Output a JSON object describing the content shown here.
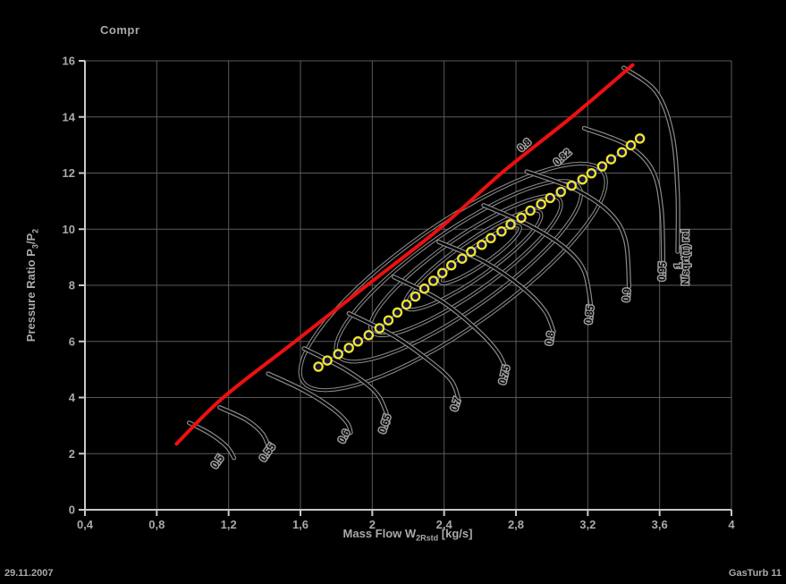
{
  "footer": {
    "date": "29.11.2007",
    "app": "GasTurb 11"
  },
  "chart_data": {
    "type": "line",
    "title": "Compr",
    "xlabel_parts": {
      "a": "Mass Flow W",
      "sub": "2Rstd",
      "b": " [kg/s]"
    },
    "ylabel_parts": {
      "a": "Pressure Ratio P",
      "sub_a": "3",
      "b": "/P",
      "sub_b": "2"
    },
    "xlim": [
      0.4,
      4
    ],
    "ylim": [
      0,
      16
    ],
    "xticks": [
      0.4,
      0.8,
      1.2,
      1.6,
      2.0,
      2.4,
      2.8,
      3.2,
      3.6,
      4.0
    ],
    "xtick_labels": [
      "0,4",
      "0,8",
      "1,2",
      "1,6",
      "2",
      "2,4",
      "2,8",
      "3,2",
      "3,6",
      "4"
    ],
    "yticks": [
      0,
      2,
      4,
      6,
      8,
      10,
      12,
      14,
      16
    ],
    "ytick_labels": [
      "0",
      "2",
      "4",
      "6",
      "8",
      "10",
      "12",
      "14",
      "16"
    ],
    "grid": true,
    "colors": {
      "background": "#000000",
      "grid": "#5a5a5a",
      "axis": "#c8c8c8",
      "text": "#a9a9a9",
      "speed_line": "#000000",
      "halo": "#8a8a8a",
      "surge": "#ee1010",
      "operating_line": "#2b35d8",
      "marker_stroke": "#f2e42a",
      "marker_fill": "#141640"
    },
    "surge_line": [
      [
        0.91,
        2.35
      ],
      [
        1.17,
        4.0
      ],
      [
        1.57,
        6.0
      ],
      [
        1.97,
        8.0
      ],
      [
        2.37,
        10.0
      ],
      [
        2.72,
        12.0
      ],
      [
        3.11,
        14.0
      ],
      [
        3.45,
        15.85
      ]
    ],
    "speed_lines": [
      {
        "label": "0.5",
        "points": [
          [
            0.98,
            3.1
          ],
          [
            1.1,
            2.7
          ],
          [
            1.19,
            2.25
          ],
          [
            1.23,
            1.85
          ]
        ],
        "label_pos": [
          1.13,
          1.45
        ],
        "label_angle": -55
      },
      {
        "label": "0.55",
        "points": [
          [
            1.15,
            3.65
          ],
          [
            1.3,
            3.2
          ],
          [
            1.39,
            2.7
          ],
          [
            1.43,
            2.1
          ]
        ],
        "label_pos": [
          1.4,
          1.7
        ],
        "label_angle": -55
      },
      {
        "label": "0.6",
        "points": [
          [
            1.42,
            4.85
          ],
          [
            1.62,
            4.25
          ],
          [
            1.78,
            3.6
          ],
          [
            1.86,
            3.1
          ],
          [
            1.88,
            2.75
          ]
        ],
        "label_pos": [
          1.84,
          2.35
        ],
        "label_angle": -62
      },
      {
        "label": "0.65",
        "points": [
          [
            1.62,
            5.75
          ],
          [
            1.85,
            5.0
          ],
          [
            2.01,
            4.25
          ],
          [
            2.07,
            3.6
          ],
          [
            2.09,
            3.1
          ]
        ],
        "label_pos": [
          2.07,
          2.7
        ],
        "label_angle": -72
      },
      {
        "label": "0.7",
        "points": [
          [
            1.87,
            7.0
          ],
          [
            2.12,
            6.2
          ],
          [
            2.32,
            5.3
          ],
          [
            2.44,
            4.6
          ],
          [
            2.48,
            3.95
          ]
        ],
        "label_pos": [
          2.47,
          3.5
        ],
        "label_angle": -72
      },
      {
        "label": "0.75",
        "points": [
          [
            2.12,
            8.3
          ],
          [
            2.37,
            7.5
          ],
          [
            2.57,
            6.5
          ],
          [
            2.7,
            5.6
          ],
          [
            2.75,
            4.9
          ]
        ],
        "label_pos": [
          2.74,
          4.45
        ],
        "label_angle": -77
      },
      {
        "label": "0.8",
        "points": [
          [
            2.37,
            9.55
          ],
          [
            2.62,
            8.85
          ],
          [
            2.83,
            7.95
          ],
          [
            2.96,
            7.1
          ],
          [
            3.01,
            6.35
          ]
        ],
        "label_pos": [
          3.0,
          5.85
        ],
        "label_angle": -80
      },
      {
        "label": "0.85",
        "points": [
          [
            2.62,
            10.85
          ],
          [
            2.87,
            10.15
          ],
          [
            3.07,
            9.35
          ],
          [
            3.18,
            8.5
          ],
          [
            3.22,
            7.15
          ]
        ],
        "label_pos": [
          3.22,
          6.6
        ],
        "label_angle": -83
      },
      {
        "label": "0.9",
        "points": [
          [
            2.86,
            12.05
          ],
          [
            3.12,
            11.45
          ],
          [
            3.32,
            10.6
          ],
          [
            3.41,
            9.6
          ],
          [
            3.43,
            7.95
          ]
        ],
        "label_pos": [
          3.43,
          7.4
        ],
        "label_angle": -85
      },
      {
        "label": "0.95",
        "points": [
          [
            3.18,
            13.6
          ],
          [
            3.42,
            13.0
          ],
          [
            3.56,
            12.1
          ],
          [
            3.61,
            10.7
          ],
          [
            3.62,
            8.7
          ]
        ],
        "label_pos": [
          3.63,
          8.15
        ],
        "label_angle": -88
      },
      {
        "label": "1",
        "points": [
          [
            3.4,
            15.75
          ],
          [
            3.58,
            14.9
          ],
          [
            3.67,
            13.4
          ],
          [
            3.7,
            11.3
          ],
          [
            3.7,
            9.2
          ]
        ],
        "label_pos": [
          3.72,
          8.6
        ],
        "label_angle": -89
      }
    ],
    "efficiency_contours": [
      {
        "center": [
          2.45,
          8.3
        ],
        "rx": 1.02,
        "ry": 1.85,
        "rot": -35
      },
      {
        "center": [
          2.48,
          8.5
        ],
        "rx": 0.82,
        "ry": 1.4,
        "rot": -35
      },
      {
        "center": [
          2.52,
          8.7
        ],
        "rx": 0.64,
        "ry": 0.99,
        "rot": -35
      },
      {
        "center": [
          2.56,
          8.9
        ],
        "rx": 0.46,
        "ry": 0.64,
        "rot": -35
      },
      {
        "center": [
          2.6,
          9.1
        ],
        "rx": 0.27,
        "ry": 0.35,
        "rot": -35
      }
    ],
    "annotations": [
      {
        "text": "0.8",
        "pos": [
          2.83,
          12.75
        ],
        "angle": -42
      },
      {
        "text": "0.82",
        "pos": [
          3.03,
          12.25
        ],
        "angle": -42
      },
      {
        "text": "N/sqrt(T) rel",
        "pos": [
          3.76,
          8.0
        ],
        "angle": -90
      }
    ],
    "operating_points": [
      [
        1.7,
        5.1
      ],
      [
        1.75,
        5.32
      ],
      [
        1.81,
        5.55
      ],
      [
        1.87,
        5.77
      ],
      [
        1.92,
        6.0
      ],
      [
        1.98,
        6.22
      ],
      [
        2.04,
        6.47
      ],
      [
        2.09,
        6.75
      ],
      [
        2.14,
        7.03
      ],
      [
        2.19,
        7.31
      ],
      [
        2.24,
        7.6
      ],
      [
        2.29,
        7.88
      ],
      [
        2.34,
        8.16
      ],
      [
        2.39,
        8.44
      ],
      [
        2.44,
        8.71
      ],
      [
        2.5,
        8.95
      ],
      [
        2.55,
        9.2
      ],
      [
        2.61,
        9.44
      ],
      [
        2.66,
        9.68
      ],
      [
        2.72,
        9.92
      ],
      [
        2.77,
        10.17
      ],
      [
        2.83,
        10.41
      ],
      [
        2.88,
        10.66
      ],
      [
        2.94,
        10.89
      ],
      [
        2.99,
        11.11
      ],
      [
        3.05,
        11.33
      ],
      [
        3.11,
        11.55
      ],
      [
        3.17,
        11.77
      ],
      [
        3.22,
        11.99
      ],
      [
        3.28,
        12.24
      ],
      [
        3.33,
        12.49
      ],
      [
        3.39,
        12.74
      ],
      [
        3.44,
        12.99
      ],
      [
        3.49,
        13.23
      ]
    ]
  }
}
